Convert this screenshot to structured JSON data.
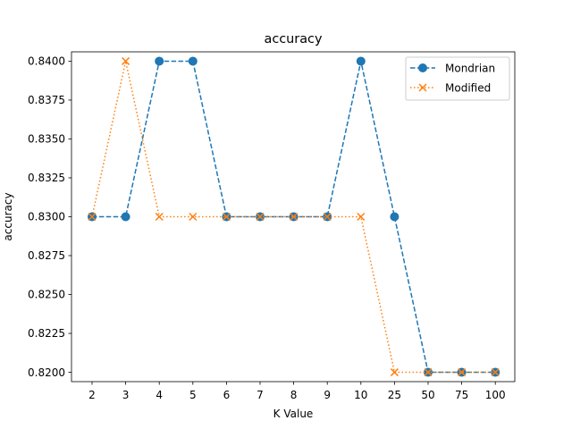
{
  "chart_data": {
    "type": "line",
    "title": "accuracy",
    "xlabel": "K Value",
    "ylabel": "accuracy",
    "categories": [
      "2",
      "3",
      "4",
      "5",
      "6",
      "7",
      "8",
      "9",
      "10",
      "25",
      "50",
      "75",
      "100"
    ],
    "ylim": [
      0.8194,
      0.8406
    ],
    "yticks": [
      "0.8200",
      "0.8225",
      "0.8250",
      "0.8275",
      "0.8300",
      "0.8325",
      "0.8350",
      "0.8375",
      "0.8400"
    ],
    "grid": false,
    "legend_position": "top-right",
    "series": [
      {
        "name": "Mondrian",
        "color": "#1f77b4",
        "linestyle": "dashed",
        "marker": "circle",
        "values": [
          0.83,
          0.83,
          0.84,
          0.84,
          0.83,
          0.83,
          0.83,
          0.83,
          0.84,
          0.83,
          0.82,
          0.82,
          0.82
        ]
      },
      {
        "name": "Modified",
        "color": "#ff7f0e",
        "linestyle": "dotted",
        "marker": "x",
        "values": [
          0.83,
          0.84,
          0.83,
          0.83,
          0.83,
          0.83,
          0.83,
          0.83,
          0.83,
          0.82,
          0.82,
          0.82,
          0.82
        ]
      }
    ]
  }
}
